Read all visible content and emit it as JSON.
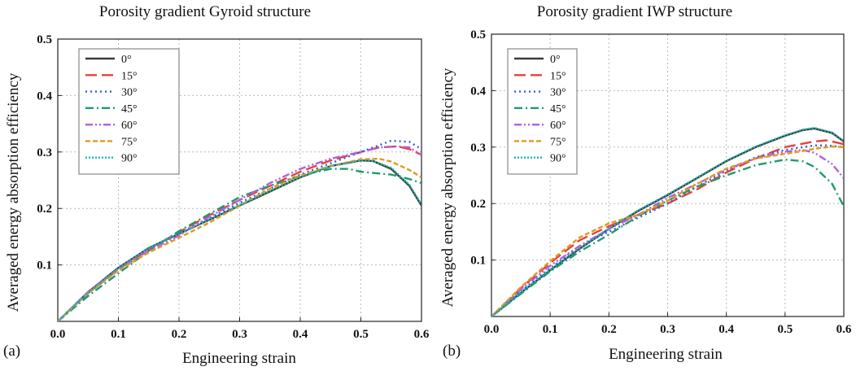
{
  "chart_data": [
    {
      "panel_label": "(a)",
      "type": "line",
      "title": "Porosity gradient Gyroid structure",
      "xlabel": "Engineering strain",
      "ylabel": "Averaged energy absorption efficiency",
      "xlim": [
        0,
        0.6
      ],
      "ylim": [
        0,
        0.5
      ],
      "xticks": [
        "0.0",
        "0.1",
        "0.2",
        "0.3",
        "0.4",
        "0.5",
        "0.6"
      ],
      "yticks": [
        "0.1",
        "0.2",
        "0.3",
        "0.4",
        "0.5"
      ],
      "grid": true,
      "legend_position": "top-left",
      "series": [
        {
          "name": "0°",
          "color": "#3a3a3a",
          "dash": "solid",
          "x": [
            0,
            0.05,
            0.1,
            0.15,
            0.2,
            0.25,
            0.3,
            0.35,
            0.4,
            0.45,
            0.5,
            0.52,
            0.55,
            0.58,
            0.6
          ],
          "y": [
            0,
            0.052,
            0.095,
            0.13,
            0.155,
            0.18,
            0.205,
            0.23,
            0.255,
            0.275,
            0.285,
            0.284,
            0.27,
            0.24,
            0.205
          ]
        },
        {
          "name": "15°",
          "color": "#e8413a",
          "dash": "long-dash",
          "x": [
            0,
            0.05,
            0.1,
            0.15,
            0.2,
            0.25,
            0.3,
            0.35,
            0.4,
            0.45,
            0.5,
            0.53,
            0.56,
            0.58,
            0.6
          ],
          "y": [
            0,
            0.05,
            0.092,
            0.128,
            0.158,
            0.188,
            0.215,
            0.24,
            0.265,
            0.285,
            0.3,
            0.308,
            0.31,
            0.305,
            0.295
          ]
        },
        {
          "name": "30°",
          "color": "#2b5fd9",
          "dash": "dot",
          "x": [
            0,
            0.05,
            0.1,
            0.15,
            0.2,
            0.25,
            0.3,
            0.35,
            0.4,
            0.45,
            0.5,
            0.53,
            0.55,
            0.58,
            0.6
          ],
          "y": [
            0,
            0.05,
            0.094,
            0.13,
            0.156,
            0.183,
            0.21,
            0.235,
            0.26,
            0.28,
            0.3,
            0.312,
            0.32,
            0.318,
            0.305
          ]
        },
        {
          "name": "45°",
          "color": "#1f9a6e",
          "dash": "dash-dot",
          "x": [
            0,
            0.05,
            0.1,
            0.15,
            0.2,
            0.25,
            0.3,
            0.35,
            0.4,
            0.45,
            0.48,
            0.5,
            0.55,
            0.58,
            0.6
          ],
          "y": [
            0,
            0.045,
            0.085,
            0.125,
            0.16,
            0.19,
            0.22,
            0.24,
            0.258,
            0.27,
            0.27,
            0.265,
            0.26,
            0.252,
            0.245
          ]
        },
        {
          "name": "60°",
          "color": "#b15fe0",
          "dash": "dash-dot-dot",
          "x": [
            0,
            0.05,
            0.1,
            0.15,
            0.2,
            0.25,
            0.3,
            0.35,
            0.4,
            0.45,
            0.5,
            0.53,
            0.56,
            0.58,
            0.6
          ],
          "y": [
            0,
            0.052,
            0.093,
            0.125,
            0.152,
            0.185,
            0.215,
            0.245,
            0.27,
            0.288,
            0.3,
            0.308,
            0.31,
            0.308,
            0.295
          ]
        },
        {
          "name": "75°",
          "color": "#e09a1b",
          "dash": "short-dash",
          "x": [
            0,
            0.05,
            0.1,
            0.15,
            0.2,
            0.25,
            0.3,
            0.35,
            0.4,
            0.45,
            0.5,
            0.53,
            0.55,
            0.58,
            0.6
          ],
          "y": [
            0,
            0.05,
            0.09,
            0.122,
            0.148,
            0.175,
            0.205,
            0.235,
            0.258,
            0.275,
            0.287,
            0.288,
            0.283,
            0.268,
            0.255
          ]
        },
        {
          "name": "90°",
          "color": "#19b7b0",
          "dash": "dense-dot",
          "x": [
            0,
            0.05,
            0.1,
            0.15,
            0.2,
            0.25,
            0.3,
            0.35,
            0.4,
            0.45,
            0.5,
            0.52,
            0.55,
            0.58,
            0.6
          ],
          "y": [
            0,
            0.051,
            0.094,
            0.13,
            0.155,
            0.18,
            0.206,
            0.231,
            0.255,
            0.275,
            0.285,
            0.284,
            0.272,
            0.242,
            0.207
          ]
        }
      ]
    },
    {
      "panel_label": "(b)",
      "type": "line",
      "title": "Porosity gradient IWP structure",
      "xlabel": "Engineering strain",
      "ylabel": "Averaged energy absorption efficiency",
      "xlim": [
        0,
        0.6
      ],
      "ylim": [
        0,
        0.5
      ],
      "xticks": [
        "0.0",
        "0.1",
        "0.2",
        "0.3",
        "0.4",
        "0.5",
        "0.6"
      ],
      "yticks": [
        "0.1",
        "0.2",
        "0.3",
        "0.4",
        "0.5"
      ],
      "grid": true,
      "legend_position": "top-left",
      "series": [
        {
          "name": "0°",
          "color": "#3a3a3a",
          "dash": "solid",
          "x": [
            0,
            0.05,
            0.1,
            0.15,
            0.2,
            0.25,
            0.3,
            0.35,
            0.4,
            0.45,
            0.5,
            0.53,
            0.55,
            0.58,
            0.6
          ],
          "y": [
            0,
            0.042,
            0.082,
            0.12,
            0.155,
            0.187,
            0.215,
            0.245,
            0.275,
            0.3,
            0.32,
            0.33,
            0.333,
            0.325,
            0.31
          ]
        },
        {
          "name": "15°",
          "color": "#e8413a",
          "dash": "long-dash",
          "x": [
            0,
            0.05,
            0.1,
            0.15,
            0.2,
            0.25,
            0.3,
            0.35,
            0.4,
            0.45,
            0.5,
            0.55,
            0.57,
            0.58,
            0.6
          ],
          "y": [
            0,
            0.05,
            0.095,
            0.135,
            0.16,
            0.18,
            0.2,
            0.225,
            0.255,
            0.28,
            0.3,
            0.31,
            0.312,
            0.31,
            0.305
          ]
        },
        {
          "name": "30°",
          "color": "#2b5fd9",
          "dash": "dot",
          "x": [
            0,
            0.05,
            0.1,
            0.15,
            0.2,
            0.25,
            0.3,
            0.35,
            0.4,
            0.45,
            0.5,
            0.55,
            0.57,
            0.58,
            0.6
          ],
          "y": [
            0,
            0.045,
            0.085,
            0.125,
            0.15,
            0.175,
            0.2,
            0.23,
            0.258,
            0.282,
            0.295,
            0.303,
            0.303,
            0.302,
            0.3
          ]
        },
        {
          "name": "45°",
          "color": "#1f9a6e",
          "dash": "dash-dot",
          "x": [
            0,
            0.05,
            0.1,
            0.15,
            0.2,
            0.25,
            0.3,
            0.35,
            0.4,
            0.45,
            0.5,
            0.53,
            0.55,
            0.58,
            0.6
          ],
          "y": [
            0,
            0.04,
            0.08,
            0.115,
            0.145,
            0.178,
            0.205,
            0.23,
            0.25,
            0.268,
            0.278,
            0.275,
            0.265,
            0.235,
            0.195
          ]
        },
        {
          "name": "60°",
          "color": "#b15fe0",
          "dash": "dash-dot-dot",
          "x": [
            0,
            0.05,
            0.1,
            0.15,
            0.2,
            0.25,
            0.3,
            0.35,
            0.4,
            0.45,
            0.5,
            0.53,
            0.55,
            0.58,
            0.6
          ],
          "y": [
            0,
            0.048,
            0.09,
            0.125,
            0.155,
            0.18,
            0.21,
            0.235,
            0.26,
            0.28,
            0.292,
            0.295,
            0.29,
            0.27,
            0.245
          ]
        },
        {
          "name": "75°",
          "color": "#e09a1b",
          "dash": "short-dash",
          "x": [
            0,
            0.05,
            0.1,
            0.15,
            0.2,
            0.25,
            0.3,
            0.35,
            0.4,
            0.45,
            0.5,
            0.53,
            0.55,
            0.58,
            0.6
          ],
          "y": [
            0,
            0.052,
            0.098,
            0.14,
            0.165,
            0.18,
            0.205,
            0.235,
            0.262,
            0.28,
            0.288,
            0.293,
            0.297,
            0.301,
            0.3
          ]
        },
        {
          "name": "90°",
          "color": "#19b7b0",
          "dash": "dense-dot",
          "x": [
            0,
            0.05,
            0.1,
            0.15,
            0.2,
            0.25,
            0.3,
            0.35,
            0.4,
            0.45,
            0.5,
            0.53,
            0.55,
            0.58,
            0.6
          ],
          "y": [
            0,
            0.043,
            0.083,
            0.121,
            0.156,
            0.188,
            0.216,
            0.246,
            0.276,
            0.301,
            0.321,
            0.331,
            0.334,
            0.326,
            0.311
          ]
        }
      ]
    }
  ]
}
